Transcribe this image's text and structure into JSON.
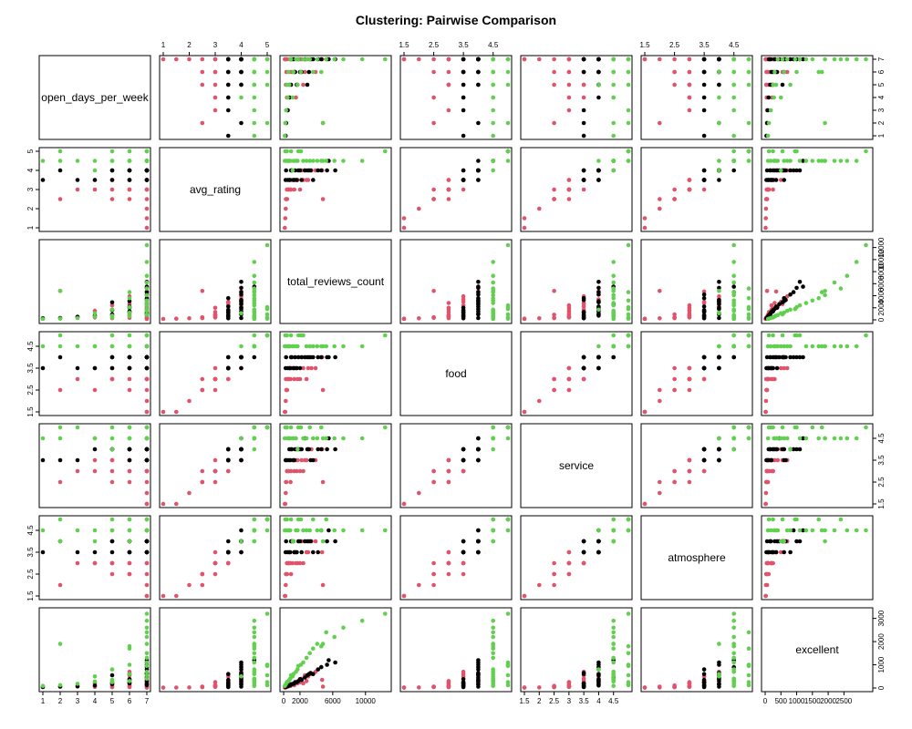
{
  "chart_data": {
    "type": "scatter",
    "title": "Clustering: Pairwise Comparison",
    "variables": [
      "open_days_per_week",
      "avg_rating",
      "total_reviews_count",
      "food",
      "service",
      "atmosphere",
      "excellent"
    ],
    "axis_ranges": {
      "open_days_per_week": [
        1,
        7
      ],
      "avg_rating": [
        1,
        5
      ],
      "total_reviews_count": [
        0,
        12700
      ],
      "food": [
        1.5,
        5
      ],
      "service": [
        1.5,
        5
      ],
      "atmosphere": [
        1.5,
        5
      ],
      "excellent": [
        0,
        3300
      ]
    },
    "tick_labels": {
      "open_days_per_week": [
        "1",
        "2",
        "3",
        "4",
        "5",
        "6",
        "7"
      ],
      "avg_rating": [
        "1",
        "2",
        "3",
        "4",
        "5"
      ],
      "total_reviews_count": [
        "0",
        "2000",
        "6000",
        "10000"
      ],
      "food": [
        "1.5",
        "2.5",
        "3.5",
        "4.5"
      ],
      "service": [
        "1.5",
        "2",
        "2.5",
        "3",
        "3.5",
        "4",
        "4.5"
      ],
      "atmosphere": [
        "1.5",
        "2.5",
        "3.5",
        "4.5"
      ],
      "excellent": [
        "0",
        "500",
        "1000",
        "1500",
        "2000",
        "2500"
      ]
    },
    "right_tick_labels": {
      "open_days_per_week": [
        "1",
        "2",
        "3",
        "4",
        "5",
        "6",
        "7"
      ],
      "total_reviews_count": [
        "0",
        "2000",
        "4000",
        "6000",
        "8000",
        "10000",
        "12000"
      ],
      "service": [
        "1.5",
        "2.5",
        "3.5",
        "4.5"
      ],
      "excellent": [
        "0",
        "1000",
        "2000",
        "3000"
      ]
    },
    "top_tick_labels": {
      "avg_rating": [
        "1",
        "2",
        "3",
        "4",
        "5"
      ],
      "food": [
        "1.5",
        "2.5",
        "3.5",
        "4.5"
      ],
      "atmosphere": [
        "1.5",
        "2.5",
        "3.5",
        "4.5"
      ]
    },
    "left_tick_labels": {
      "avg_rating": [
        "1",
        "2",
        "3",
        "4",
        "5"
      ],
      "food": [
        "1.5",
        "2.5",
        "3.5",
        "4.5"
      ],
      "atmosphere": [
        "1.5",
        "2.5",
        "3.5",
        "4.5"
      ]
    },
    "cluster_colors": [
      "#000000",
      "#DF536B",
      "#61D04F"
    ],
    "grid": false,
    "point_data": [
      [
        7,
        2.0,
        260,
        2,
        2,
        2,
        25,
        2
      ],
      [
        7,
        1.5,
        200,
        1.5,
        1.5,
        1.5,
        20,
        2
      ],
      [
        7,
        1.0,
        150,
        1.5,
        1.5,
        1.5,
        15,
        2
      ],
      [
        6,
        2.5,
        330,
        2.5,
        2.5,
        2.5,
        40,
        2
      ],
      [
        7,
        2.5,
        420,
        2.5,
        3,
        2.5,
        50,
        2
      ],
      [
        5,
        2.5,
        280,
        3,
        2.5,
        2.5,
        35,
        2
      ],
      [
        6,
        3.0,
        600,
        3,
        3,
        3,
        70,
        2
      ],
      [
        7,
        3.0,
        850,
        3,
        2.5,
        3,
        90,
        2
      ],
      [
        4,
        3.0,
        400,
        2.5,
        3,
        3,
        50,
        2
      ],
      [
        2,
        2.5,
        4800,
        2.5,
        2.5,
        2,
        60,
        2
      ],
      [
        7,
        3.5,
        1600,
        3.5,
        3,
        3.5,
        250,
        2
      ],
      [
        7,
        4.0,
        2200,
        4,
        3.5,
        4,
        400,
        2
      ],
      [
        6,
        3.5,
        1100,
        3.5,
        3.5,
        3,
        180,
        2
      ],
      [
        7,
        3.5,
        2800,
        3,
        3.5,
        3.5,
        300,
        2
      ],
      [
        5,
        3.5,
        2400,
        3.5,
        3,
        3,
        200,
        2
      ],
      [
        7,
        4.0,
        4700,
        4,
        4,
        3.5,
        350,
        2
      ],
      [
        7,
        4.0,
        3400,
        3.5,
        4,
        4,
        600,
        2
      ],
      [
        6,
        4.0,
        2600,
        4,
        3.5,
        4,
        550,
        2
      ],
      [
        5,
        3.5,
        1700,
        3,
        3.5,
        3,
        200,
        2
      ],
      [
        7,
        3.0,
        1300,
        3,
        3,
        3.5,
        120,
        2
      ],
      [
        3,
        3.0,
        500,
        3,
        3,
        3,
        60,
        2
      ],
      [
        6,
        3.0,
        900,
        3.5,
        3,
        2.5,
        110,
        2
      ],
      [
        7,
        3.5,
        3000,
        3.5,
        4,
        3.5,
        500,
        2
      ],
      [
        6,
        4.0,
        3900,
        3.5,
        3.5,
        4,
        700,
        2
      ],
      [
        7,
        3.0,
        2000,
        3,
        3,
        3,
        250,
        2
      ],
      [
        4,
        3.5,
        1500,
        3.5,
        3.5,
        3,
        220,
        2
      ],
      [
        5,
        3.0,
        700,
        3,
        3.5,
        3,
        90,
        2
      ],
      [
        7,
        4.0,
        1000,
        4,
        4,
        4,
        160,
        1
      ],
      [
        7,
        4.0,
        1800,
        4,
        4,
        4,
        300,
        1
      ],
      [
        7,
        4.0,
        2600,
        4,
        4.5,
        4,
        450,
        1
      ],
      [
        6,
        4.0,
        1400,
        4,
        4,
        3.5,
        250,
        1
      ],
      [
        6,
        3.5,
        1300,
        3.5,
        3.5,
        3.5,
        200,
        1
      ],
      [
        5,
        4.0,
        900,
        4,
        4,
        4,
        160,
        1
      ],
      [
        7,
        3.5,
        3600,
        4,
        3.5,
        3.5,
        600,
        1
      ],
      [
        7,
        4.0,
        4600,
        4,
        4,
        4.5,
        900,
        1
      ],
      [
        7,
        4.0,
        5300,
        4,
        4,
        4,
        1000,
        1
      ],
      [
        6,
        3.5,
        2200,
        4,
        4,
        3.5,
        350,
        1
      ],
      [
        7,
        3.5,
        1200,
        3.5,
        3.5,
        4,
        180,
        1
      ],
      [
        4,
        3.5,
        700,
        3.5,
        4,
        3.5,
        110,
        1
      ],
      [
        3,
        3.5,
        500,
        3.5,
        3.5,
        3.5,
        80,
        1
      ],
      [
        2,
        4.0,
        300,
        4,
        3.5,
        4,
        60,
        1
      ],
      [
        1,
        3.5,
        250,
        3.5,
        3.5,
        3.5,
        40,
        1
      ],
      [
        7,
        4.0,
        6300,
        4,
        4,
        4,
        1100,
        1
      ],
      [
        7,
        4.5,
        5500,
        4,
        4.5,
        4.5,
        1200,
        1
      ],
      [
        6,
        4.0,
        3100,
        4,
        4,
        4,
        600,
        1
      ],
      [
        7,
        3.5,
        800,
        3.5,
        3.5,
        3.5,
        120,
        1
      ],
      [
        5,
        3.5,
        1600,
        3.5,
        4,
        3.5,
        250,
        1
      ],
      [
        7,
        4.0,
        4200,
        4,
        4,
        3.5,
        800,
        1
      ],
      [
        6,
        4.0,
        2000,
        3.5,
        4,
        4,
        380,
        1
      ],
      [
        7,
        4.0,
        3300,
        4,
        3.5,
        4,
        650,
        1
      ],
      [
        5,
        4.0,
        2900,
        4,
        4,
        4,
        550,
        1
      ],
      [
        7,
        4.5,
        800,
        4.5,
        4.5,
        4.5,
        400,
        3
      ],
      [
        7,
        4.5,
        1500,
        4.5,
        4.5,
        4.5,
        700,
        3
      ],
      [
        7,
        4.5,
        2400,
        5,
        4.5,
        4.5,
        1100,
        3
      ],
      [
        7,
        5.0,
        900,
        5,
        5,
        5,
        550,
        3
      ],
      [
        7,
        4.5,
        3200,
        4.5,
        5,
        4.5,
        1500,
        3
      ],
      [
        7,
        4.5,
        4100,
        4.5,
        4.5,
        4.5,
        1900,
        3
      ],
      [
        7,
        4.5,
        5200,
        4.5,
        4.5,
        5,
        2400,
        3
      ],
      [
        7,
        4.5,
        7300,
        4.5,
        4.5,
        4.5,
        2600,
        3
      ],
      [
        7,
        5.0,
        12400,
        5,
        5,
        4.5,
        3200,
        3
      ],
      [
        6,
        4.5,
        600,
        4.5,
        4.5,
        4.5,
        300,
        3
      ],
      [
        6,
        4.5,
        1200,
        4.5,
        4.5,
        4,
        600,
        3
      ],
      [
        6,
        5.0,
        2100,
        5,
        5,
        5,
        1000,
        3
      ],
      [
        5,
        4.5,
        700,
        4.5,
        4.5,
        4.5,
        350,
        3
      ],
      [
        5,
        5.0,
        400,
        5,
        5,
        5,
        250,
        3
      ],
      [
        4,
        4.5,
        500,
        4.5,
        4.5,
        4.5,
        280,
        3
      ],
      [
        3,
        4.5,
        300,
        4.5,
        5,
        4.5,
        180,
        3
      ],
      [
        2,
        5.0,
        200,
        5,
        5,
        5,
        120,
        3
      ],
      [
        2,
        4.5,
        4800,
        4.5,
        4.5,
        4,
        1900,
        3
      ],
      [
        1,
        4.5,
        150,
        4.5,
        4.5,
        4.5,
        90,
        3
      ],
      [
        7,
        4.5,
        9600,
        4.5,
        4.5,
        4.5,
        2900,
        3
      ],
      [
        6,
        4.5,
        3600,
        4.5,
        4.5,
        5,
        1700,
        3
      ],
      [
        7,
        5.0,
        1800,
        5,
        5,
        5,
        950,
        3
      ],
      [
        7,
        4.5,
        2800,
        4.5,
        4.5,
        4.5,
        1300,
        3
      ],
      [
        5,
        4.5,
        1700,
        4.5,
        4,
        4.5,
        800,
        3
      ],
      [
        4,
        4.0,
        1100,
        4.5,
        4.5,
        4,
        500,
        3
      ],
      [
        7,
        4.5,
        6200,
        4.5,
        4.5,
        4.5,
        2200,
        3
      ],
      [
        6,
        4.5,
        4600,
        4.5,
        5,
        4.5,
        1800,
        3
      ]
    ]
  }
}
